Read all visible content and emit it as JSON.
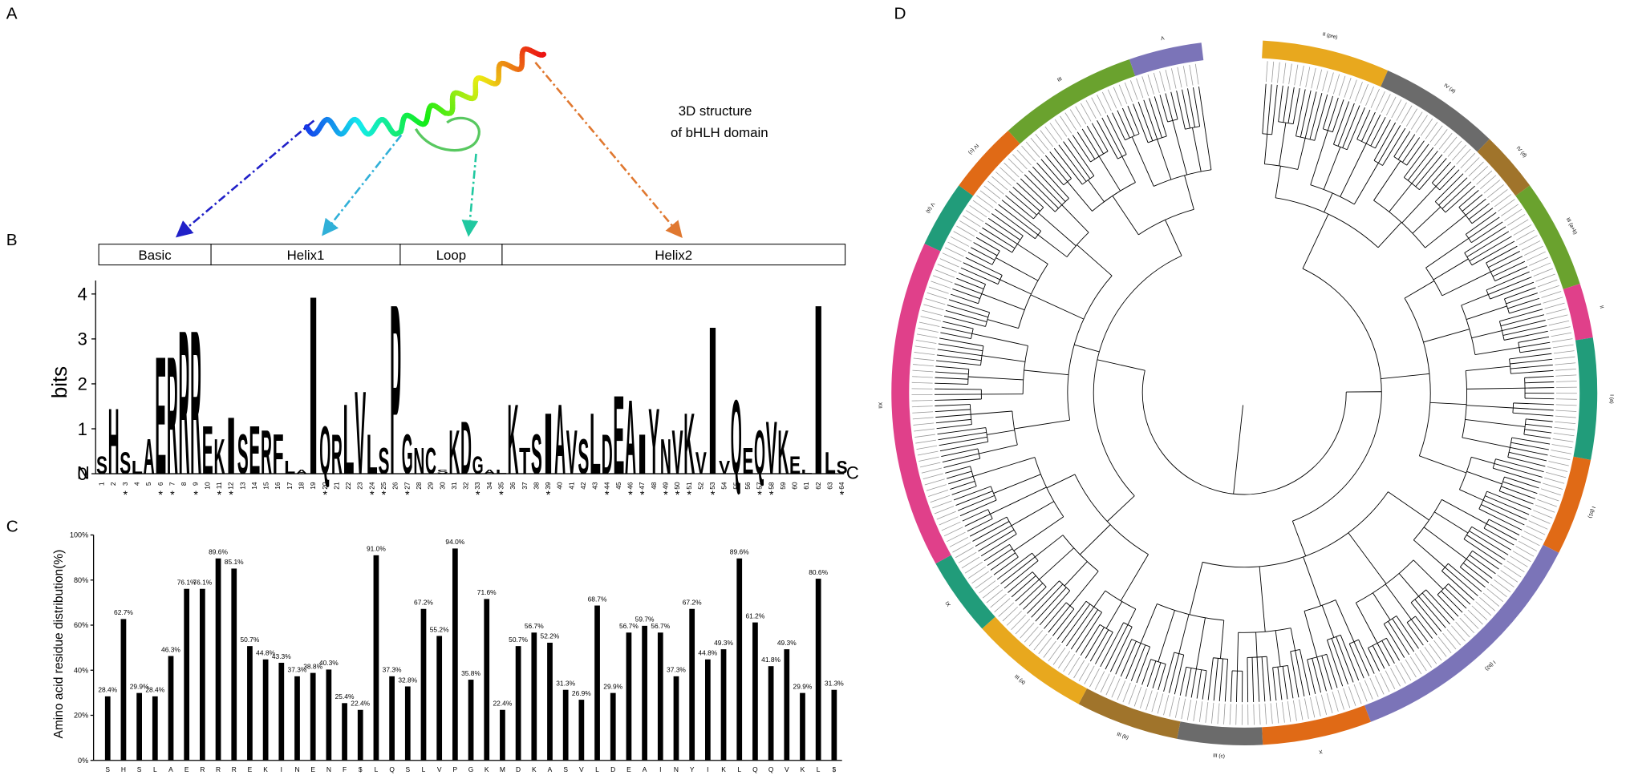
{
  "panel_a": {
    "label": "A",
    "caption": [
      "3D structure",
      "of bHLH domain"
    ]
  },
  "panel_b": {
    "label": "B",
    "regions": [
      "Basic",
      "Helix1",
      "Loop",
      "Helix2"
    ],
    "logo": {
      "ylabel": "bits",
      "ylim": [
        0,
        4.3
      ],
      "yticks": [
        0,
        1,
        2,
        3,
        4
      ],
      "positions": [
        1,
        2,
        3,
        4,
        5,
        6,
        7,
        8,
        9,
        10,
        11,
        12,
        13,
        14,
        15,
        16,
        17,
        18,
        19,
        20,
        21,
        22,
        23,
        24,
        25,
        26,
        27,
        28,
        29,
        30,
        31,
        32,
        33,
        34,
        35,
        36,
        37,
        38,
        39,
        40,
        41,
        42,
        43,
        44,
        45,
        46,
        47,
        48,
        49,
        50,
        51,
        52,
        53,
        54,
        55,
        56,
        57,
        58,
        59,
        60,
        61,
        62,
        63,
        64
      ],
      "letters": [
        "S",
        "H",
        "S",
        "L",
        "A",
        "E",
        "R",
        "R",
        "R",
        "E",
        "K",
        "I",
        "S",
        "E",
        "R",
        "F",
        "L",
        "A",
        "I",
        "Q",
        "R",
        "L",
        "V",
        "L",
        "S",
        "P",
        "G",
        "N",
        "C",
        "S",
        "K",
        "D",
        "G",
        "A",
        "L",
        "K",
        "T",
        "S",
        "I",
        "A",
        "V",
        "S",
        "L",
        "D",
        "E",
        "A",
        "I",
        "Y",
        "N",
        "V",
        "K",
        "V",
        "I",
        "V",
        "Q",
        "E",
        "Q",
        "V",
        "K",
        "E",
        "L",
        "I",
        "L",
        "S"
      ],
      "bits": [
        0.4,
        1.5,
        0.5,
        0.3,
        0.8,
        2.7,
        2.7,
        3.3,
        3.3,
        1.1,
        0.8,
        1.3,
        0.9,
        1.1,
        1.0,
        0.9,
        0.3,
        0.1,
        4.1,
        1.1,
        0.9,
        1.6,
        1.9,
        0.9,
        0.6,
        3.9,
        0.9,
        0.6,
        0.6,
        0.1,
        1.0,
        1.2,
        0.4,
        0.1,
        0.1,
        1.6,
        0.6,
        0.9,
        1.4,
        1.6,
        1.0,
        0.8,
        1.4,
        0.9,
        1.8,
        1.7,
        0.9,
        1.5,
        0.8,
        1.0,
        1.4,
        0.5,
        3.4,
        0.3,
        1.7,
        0.6,
        1.0,
        1.2,
        1.0,
        0.4,
        0.1,
        3.9,
        0.5,
        0.3
      ],
      "letter_colors": {
        "A": "#000000",
        "V": "#000000",
        "L": "#000000",
        "I": "#000000",
        "P": "#000000",
        "F": "#000000",
        "M": "#000000",
        "W": "#000000",
        "K": "#0000cc",
        "R": "#0000cc",
        "H": "#0000cc",
        "D": "#cc0000",
        "E": "#cc0000",
        "S": "#00a000",
        "T": "#00a000",
        "Y": "#00a000",
        "G": "#00a000",
        "C": "#00a000",
        "N": "#cc00cc",
        "Q": "#cc00cc"
      },
      "asterisk": "*",
      "asterisk_positions": [
        3,
        6,
        7,
        9,
        11,
        12,
        20,
        24,
        25,
        27,
        33,
        35,
        39,
        44,
        46,
        47,
        49,
        50,
        51,
        53,
        57,
        58,
        64
      ],
      "n_label": "N",
      "c_label": "C"
    }
  },
  "chart_data": {
    "type": "bar",
    "panel_label": "C",
    "ylabel": "Amino acid residue  distribution(%)",
    "categories": [
      "S",
      "H",
      "S",
      "L",
      "A",
      "E",
      "R",
      "R",
      "R",
      "E",
      "K",
      "I",
      "N",
      "E",
      "N",
      "F",
      "$",
      "L",
      "Q",
      "S",
      "L",
      "V",
      "P",
      "G",
      "K",
      "M",
      "D",
      "K",
      "A",
      "S",
      "V",
      "L",
      "D",
      "E",
      "A",
      "I",
      "N",
      "Y",
      "I",
      "K",
      "L",
      "Q",
      "Q",
      "V",
      "K",
      "L",
      "$"
    ],
    "values": [
      28.4,
      62.7,
      29.9,
      28.4,
      46.3,
      76.1,
      76.1,
      89.6,
      85.1,
      50.7,
      44.8,
      43.3,
      37.3,
      38.8,
      40.3,
      25.4,
      22.4,
      91.0,
      37.3,
      32.8,
      67.2,
      55.2,
      94.0,
      35.8,
      71.6,
      22.4,
      50.7,
      56.7,
      52.2,
      31.3,
      26.9,
      68.7,
      29.9,
      56.7,
      59.7,
      56.7,
      37.3,
      67.2,
      44.8,
      49.3,
      89.6,
      61.2,
      41.8,
      49.3,
      29.9,
      80.6,
      31.3
    ],
    "value_labels": [
      "28.4%",
      "62.7%",
      "29.9%",
      "28.4%",
      "46.3%",
      "76.1%",
      "76.1%",
      "89.6%",
      "85.1%",
      "50.7%",
      "44.8%",
      "43.3%",
      "37.3%",
      "38.8%",
      "40.3%",
      "25.4%",
      "22.4%",
      "91.0%",
      "37.3%",
      "32.8%",
      "67.2%",
      "55.2%",
      "94.0%",
      "35.8%",
      "71.6%",
      "22.4%",
      "50.7%",
      "56.7%",
      "52.2%",
      "31.3%",
      "26.9%",
      "68.7%",
      "29.9%",
      "56.7%",
      "59.7%",
      "56.7%",
      "37.3%",
      "67.2%",
      "44.8%",
      "49.3%",
      "89.6%",
      "61.2%",
      "41.8%",
      "49.3%",
      "29.9%",
      "80.6%",
      "31.3%"
    ],
    "color": "#000000",
    "ylim": [
      0,
      100
    ],
    "yticks": [
      {
        "value": 0,
        "label": "0%"
      },
      {
        "value": 20,
        "label": "20%"
      },
      {
        "value": 40,
        "label": "40%"
      },
      {
        "value": 60,
        "label": "60%"
      },
      {
        "value": 80,
        "label": "80%"
      },
      {
        "value": 100,
        "label": "100%"
      }
    ]
  },
  "panel_d": {
    "label": "D",
    "groups": [
      {
        "name": "II (pre)",
        "color": "#e8a81e"
      },
      {
        "name": "IV (a)",
        "color": "#6b6b6b"
      },
      {
        "name": "IV (d)",
        "color": "#a0742b"
      },
      {
        "name": "III (a+b)",
        "color": "#6aa22e"
      },
      {
        "name": "II",
        "color": "#e0408a"
      },
      {
        "name": "I (a)",
        "color": "#219c7a"
      },
      {
        "name": "I (b1)",
        "color": "#e06a16"
      },
      {
        "name": "I (b2)",
        "color": "#7b74b8"
      },
      {
        "name": "X",
        "color": "#e06a16"
      },
      {
        "name": "III (c)",
        "color": "#6b6b6b"
      },
      {
        "name": "III (b)",
        "color": "#a0742b"
      },
      {
        "name": "III (a)",
        "color": "#e8a81e"
      },
      {
        "name": "IX",
        "color": "#219c7a"
      },
      {
        "name": "XII",
        "color": "#e0408a"
      },
      {
        "name": "V (a)",
        "color": "#219c7a"
      },
      {
        "name": "IV (c)",
        "color": "#e06a16"
      },
      {
        "name": "III",
        "color": "#6aa22e"
      },
      {
        "name": "V",
        "color": "#7b74b8"
      }
    ]
  }
}
